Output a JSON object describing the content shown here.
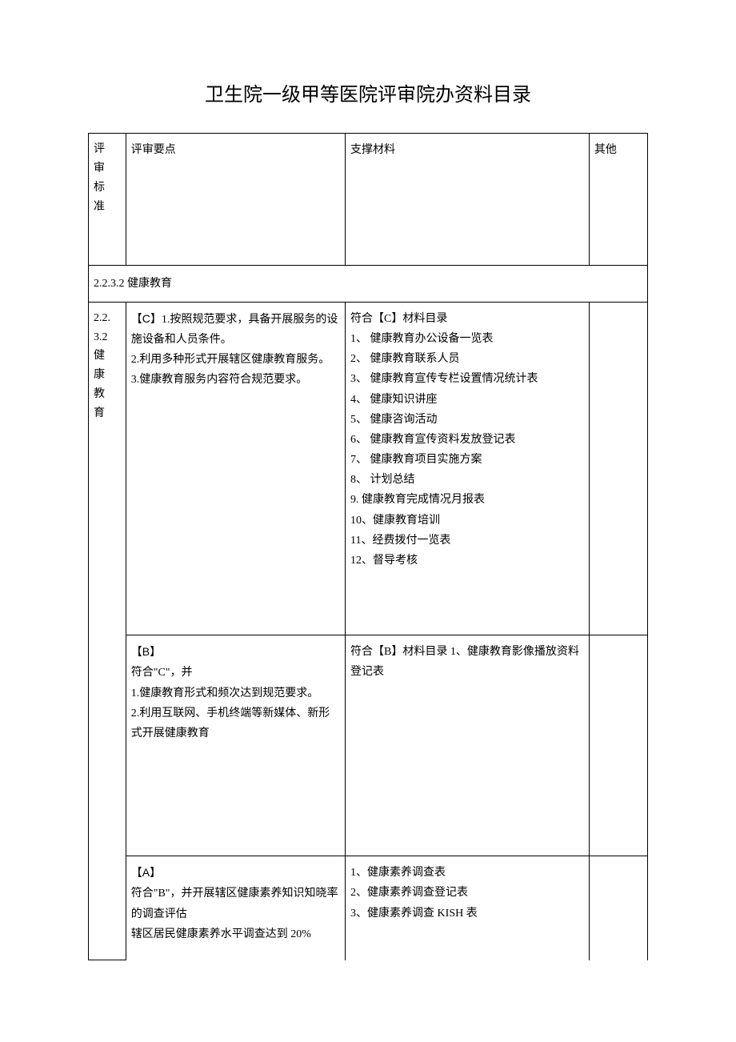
{
  "title": "卫生院一级甲等医院评审院办资料目录",
  "headers": {
    "col1": "评审标准",
    "col2": "评审要点",
    "col3": "支撑材料",
    "col4": "其他"
  },
  "section": {
    "label": "2.2.3.2 健康教育"
  },
  "rowC": {
    "standard": "2.2.3.2健康教育",
    "points": "【C】1.按照规范要求，具备开展服务的设施设备和人员条件。\n2.利用多种形式开展辖区健康教育服务。\n3.健康教育服务内容符合规范要求。",
    "materials": "符合【C】材料目录\n1、 健康教育办公设备一览表\n2、 健康教育联系人员\n3、 健康教育宣传专栏设置情况统计表\n4、 健康知识讲座\n5、 健康咨询活动\n6、 健康教育宣传资料发放登记表\n7、 健康教育项目实施方案\n8、 计划总结\n9. 健康教育完成情况月报表\n10、健康教育培训\n11、经费拨付一览表\n12、督导考核"
  },
  "rowB": {
    "points": "【B】\n符合\"C\"，并\n1.健康教育形式和频次达到规范要求。\n2.利用互联网、手机终端等新媒体、新形式开展健康教育",
    "materials": "符合【B】材料目录 1、健康教育影像播放资料登记表"
  },
  "rowA": {
    "points": "【A】\n符合\"B\"，并开展辖区健康素养知识知晓率的调查评估\n辖区居民健康素养水平调查达到 20%",
    "materials": "1、健康素养调查表\n2、健康素养调查登记表\n3、健康素养调查 KISH 表"
  }
}
